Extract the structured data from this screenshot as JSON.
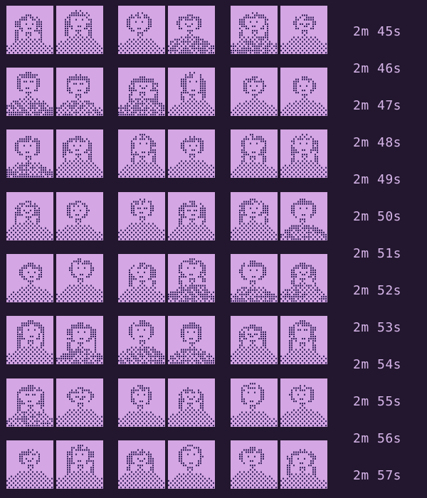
{
  "palette": {
    "background": "#22172e",
    "tile": "#d4a6e3",
    "ink": "#3a2760",
    "timestamp_text": "#d7b5ea"
  },
  "grid": {
    "rows": 8,
    "pairs_per_row": 3,
    "tiles_per_pair": 2,
    "tile_icon": "pixel-portrait-icon"
  },
  "timestamps": [
    "2m 45s",
    "2m 46s",
    "2m 47s",
    "2m 48s",
    "2m 49s",
    "2m 50s",
    "2m 51s",
    "2m 52s",
    "2m 53s",
    "2m 54s",
    "2m 55s",
    "2m 56s",
    "2m 57s"
  ]
}
